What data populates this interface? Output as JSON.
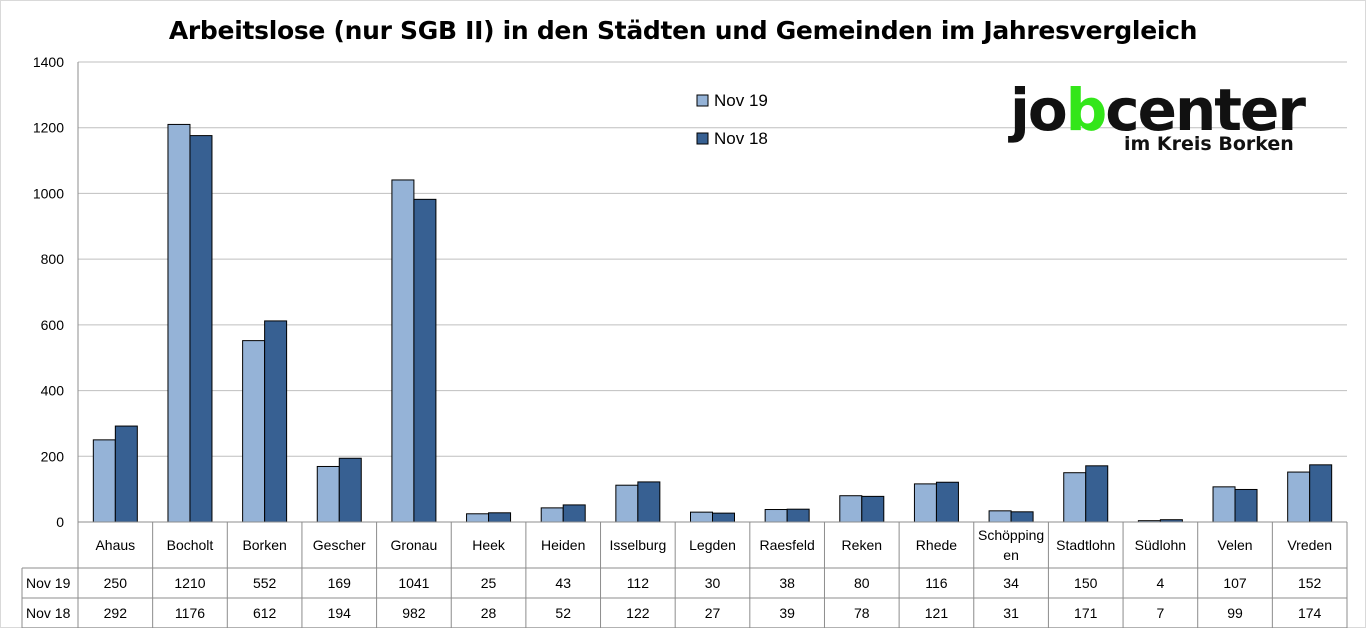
{
  "chart_data": {
    "type": "bar",
    "title": "Arbeitslose (nur SGB II) in den Städten und Gemeinden im Jahresvergleich",
    "categories": [
      "Ahaus",
      "Bocholt",
      "Borken",
      "Gescher",
      "Gronau",
      "Heek",
      "Heiden",
      "Isselburg",
      "Legden",
      "Raesfeld",
      "Reken",
      "Rhede",
      "Schöpping en",
      "Stadtlohn",
      "Südlohn",
      "Velen",
      "Vreden"
    ],
    "series": [
      {
        "name": "Nov 19",
        "color": "#95b3d7",
        "values": [
          250,
          1210,
          552,
          169,
          1041,
          25,
          43,
          112,
          30,
          38,
          80,
          116,
          34,
          150,
          4,
          107,
          152
        ]
      },
      {
        "name": "Nov 18",
        "color": "#376092",
        "values": [
          292,
          1176,
          612,
          194,
          982,
          28,
          52,
          122,
          27,
          39,
          78,
          121,
          31,
          171,
          7,
          99,
          174
        ]
      }
    ],
    "ylim": [
      0,
      1400
    ],
    "yticks": [
      0,
      200,
      400,
      600,
      800,
      1000,
      1200,
      1400
    ],
    "grid": true,
    "legend_position": "top-center",
    "data_table": true
  },
  "logo": {
    "main_pre": "jo",
    "main_b": "b",
    "main_post": "center",
    "sub": "im Kreis Borken"
  }
}
